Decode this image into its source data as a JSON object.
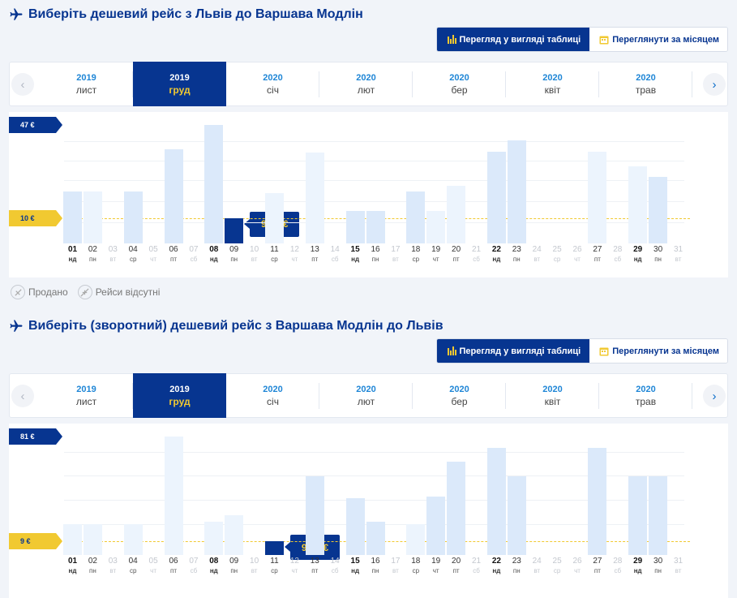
{
  "outbound": {
    "title": "Виберіть дешевий рейс з Львів до Варшава Модлін",
    "view_table_label": "Перегляд у вигляді таблиці",
    "view_month_label": "Переглянути за місяцем",
    "months": [
      {
        "year": "2019",
        "name": "лист"
      },
      {
        "year": "2019",
        "name": "груд"
      },
      {
        "year": "2020",
        "name": "січ"
      },
      {
        "year": "2020",
        "name": "лют"
      },
      {
        "year": "2020",
        "name": "бер"
      },
      {
        "year": "2020",
        "name": "квіт"
      },
      {
        "year": "2020",
        "name": "трав"
      }
    ],
    "selected_month_index": 1,
    "max_price_label": "47 €",
    "min_price_label": "10 €",
    "selected_price_label": "9,99 €",
    "legend": {
      "sold_out": "Продано",
      "no_flights": "Рейси відсутні"
    }
  },
  "return": {
    "title": "Виберіть (зворотний) дешевий рейс з Варшава Модлін до Львів",
    "view_table_label": "Перегляд у вигляді таблиці",
    "view_month_label": "Переглянути за місяцем",
    "months": [
      {
        "year": "2019",
        "name": "лист"
      },
      {
        "year": "2019",
        "name": "груд"
      },
      {
        "year": "2020",
        "name": "січ"
      },
      {
        "year": "2020",
        "name": "лют"
      },
      {
        "year": "2020",
        "name": "бер"
      },
      {
        "year": "2020",
        "name": "квіт"
      },
      {
        "year": "2020",
        "name": "трав"
      }
    ],
    "selected_month_index": 1,
    "max_price_label": "81 €",
    "min_price_label": "9 €",
    "selected_price_label": "9,18 €"
  },
  "days": [
    {
      "d": "01",
      "w": "нд",
      "style": "bold"
    },
    {
      "d": "02",
      "w": "пн",
      "style": "normal"
    },
    {
      "d": "03",
      "w": "вт",
      "style": "faded"
    },
    {
      "d": "04",
      "w": "ср",
      "style": "normal"
    },
    {
      "d": "05",
      "w": "чт",
      "style": "faded"
    },
    {
      "d": "06",
      "w": "пт",
      "style": "normal"
    },
    {
      "d": "07",
      "w": "сб",
      "style": "faded"
    },
    {
      "d": "08",
      "w": "нд",
      "style": "bold"
    },
    {
      "d": "09",
      "w": "пн",
      "style": "normal"
    },
    {
      "d": "10",
      "w": "вт",
      "style": "faded"
    },
    {
      "d": "11",
      "w": "ср",
      "style": "normal"
    },
    {
      "d": "12",
      "w": "чт",
      "style": "faded"
    },
    {
      "d": "13",
      "w": "пт",
      "style": "normal"
    },
    {
      "d": "14",
      "w": "сб",
      "style": "faded"
    },
    {
      "d": "15",
      "w": "нд",
      "style": "bold"
    },
    {
      "d": "16",
      "w": "пн",
      "style": "normal"
    },
    {
      "d": "17",
      "w": "вт",
      "style": "faded"
    },
    {
      "d": "18",
      "w": "ср",
      "style": "normal"
    },
    {
      "d": "19",
      "w": "чт",
      "style": "normal"
    },
    {
      "d": "20",
      "w": "пт",
      "style": "normal"
    },
    {
      "d": "21",
      "w": "сб",
      "style": "faded"
    },
    {
      "d": "22",
      "w": "нд",
      "style": "bold"
    },
    {
      "d": "23",
      "w": "пн",
      "style": "normal"
    },
    {
      "d": "24",
      "w": "вт",
      "style": "faded"
    },
    {
      "d": "25",
      "w": "ср",
      "style": "faded"
    },
    {
      "d": "26",
      "w": "чт",
      "style": "faded"
    },
    {
      "d": "27",
      "w": "пт",
      "style": "normal"
    },
    {
      "d": "28",
      "w": "сб",
      "style": "faded"
    },
    {
      "d": "29",
      "w": "нд",
      "style": "bold"
    },
    {
      "d": "30",
      "w": "пн",
      "style": "normal"
    },
    {
      "d": "31",
      "w": "вт",
      "style": "faded"
    }
  ],
  "chart_data": [
    {
      "type": "bar",
      "categories": [
        "01",
        "02",
        "03",
        "04",
        "05",
        "06",
        "07",
        "08",
        "09",
        "10",
        "11",
        "12",
        "13",
        "14",
        "15",
        "16",
        "17",
        "18",
        "19",
        "20",
        "21",
        "22",
        "23",
        "24",
        "25",
        "26",
        "27",
        "28",
        "29",
        "30",
        "31"
      ],
      "values": [
        20.5,
        20.5,
        null,
        20.5,
        null,
        37.5,
        null,
        47,
        9.99,
        null,
        20,
        null,
        36,
        null,
        13,
        13,
        null,
        20.5,
        13,
        23,
        null,
        36.5,
        41,
        null,
        null,
        null,
        36.5,
        null,
        30.5,
        26.5,
        null
      ],
      "light": [
        1,
        4,
        8,
        10,
        12,
        18,
        19,
        26,
        28
      ],
      "selected_index": 8,
      "ylim": [
        0,
        47
      ]
    },
    {
      "type": "bar",
      "categories": [
        "01",
        "02",
        "03",
        "04",
        "05",
        "06",
        "07",
        "08",
        "09",
        "10",
        "11",
        "12",
        "13",
        "14",
        "15",
        "16",
        "17",
        "18",
        "19",
        "20",
        "21",
        "22",
        "23",
        "24",
        "25",
        "26",
        "27",
        "28",
        "29",
        "30",
        "31"
      ],
      "values": [
        21,
        21,
        null,
        21,
        null,
        81,
        null,
        23,
        27,
        null,
        9.18,
        null,
        54,
        null,
        39,
        23,
        null,
        21,
        40,
        64,
        null,
        73,
        54,
        null,
        null,
        null,
        73,
        null,
        54,
        54,
        null
      ],
      "light": [
        0,
        1,
        3,
        5,
        7,
        8,
        17
      ],
      "selected_index": 10,
      "ylim": [
        0,
        81
      ]
    }
  ]
}
